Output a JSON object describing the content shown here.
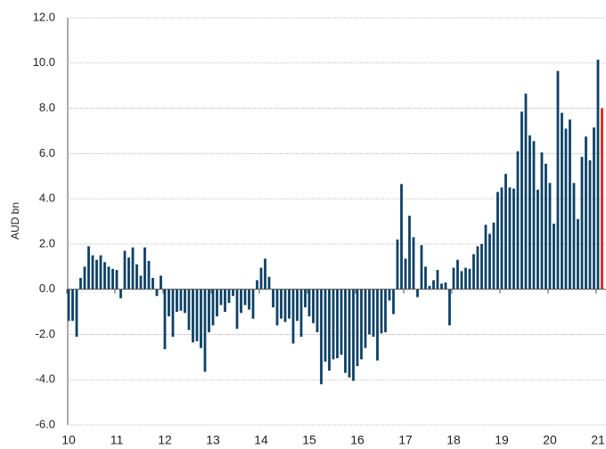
{
  "chart_data": {
    "type": "bar",
    "y_label": "AUD bn",
    "categories": [
      "10",
      null,
      null,
      null,
      null,
      null,
      null,
      null,
      null,
      null,
      null,
      null,
      "11",
      null,
      null,
      null,
      null,
      null,
      null,
      null,
      null,
      null,
      null,
      null,
      "12",
      null,
      null,
      null,
      null,
      null,
      null,
      null,
      null,
      null,
      null,
      null,
      "13",
      null,
      null,
      null,
      null,
      null,
      null,
      null,
      null,
      null,
      null,
      null,
      "14",
      null,
      null,
      null,
      null,
      null,
      null,
      null,
      null,
      null,
      null,
      null,
      "15",
      null,
      null,
      null,
      null,
      null,
      null,
      null,
      null,
      null,
      null,
      null,
      "16",
      null,
      null,
      null,
      null,
      null,
      null,
      null,
      null,
      null,
      null,
      null,
      "17",
      null,
      null,
      null,
      null,
      null,
      null,
      null,
      null,
      null,
      null,
      null,
      "18",
      null,
      null,
      null,
      null,
      null,
      null,
      null,
      null,
      null,
      null,
      null,
      "19",
      null,
      null,
      null,
      null,
      null,
      null,
      null,
      null,
      null,
      null,
      null,
      "20",
      null,
      null,
      null,
      null,
      null,
      null,
      null,
      null,
      null,
      null,
      null,
      "21",
      null
    ],
    "values": [
      -1.4,
      -1.4,
      -2.1,
      0.5,
      1.0,
      1.9,
      1.5,
      1.3,
      1.5,
      1.2,
      1.0,
      0.9,
      0.85,
      -0.4,
      1.7,
      1.4,
      1.85,
      1.1,
      0.6,
      1.85,
      1.25,
      0.5,
      -0.3,
      0.6,
      -2.65,
      -1.2,
      -2.1,
      -1.0,
      -0.95,
      -1.05,
      -1.8,
      -2.35,
      -2.3,
      -2.6,
      -3.65,
      -1.9,
      -1.6,
      -1.2,
      -0.7,
      -1.0,
      -0.6,
      -0.3,
      -1.75,
      -1.05,
      -0.7,
      -0.9,
      -1.3,
      0.4,
      0.95,
      1.35,
      0.55,
      -0.8,
      -1.6,
      -1.3,
      -1.45,
      -1.3,
      -2.4,
      -1.4,
      -2.1,
      -0.8,
      -1.2,
      -1.5,
      -1.9,
      -4.2,
      -3.2,
      -3.6,
      -3.1,
      -3.05,
      -2.9,
      -3.7,
      -3.9,
      -4.05,
      -3.4,
      -3.1,
      -2.6,
      -2.0,
      -2.1,
      -3.15,
      -1.95,
      -1.9,
      -0.5,
      -1.1,
      2.2,
      4.65,
      1.35,
      3.25,
      2.3,
      -0.35,
      1.95,
      1.0,
      0.15,
      0.4,
      0.85,
      0.25,
      0.3,
      -1.6,
      0.95,
      1.3,
      0.8,
      0.95,
      0.9,
      1.55,
      1.9,
      2.0,
      2.85,
      2.45,
      2.95,
      4.3,
      4.5,
      5.1,
      4.5,
      4.45,
      6.1,
      7.85,
      8.65,
      6.8,
      6.55,
      4.4,
      6.05,
      5.55,
      4.7,
      2.9,
      9.65,
      7.8,
      7.1,
      7.5,
      4.7,
      3.1,
      5.85,
      6.75,
      5.7,
      7.15,
      10.15,
      8.0
    ],
    "color": "#0d4266",
    "last_color": "#e8201c",
    "ylim": [
      -6,
      12
    ],
    "yticks": [
      {
        "value": -6,
        "label": "-6.0"
      },
      {
        "value": -4,
        "label": "-4.0"
      },
      {
        "value": -2,
        "label": "-2.0"
      },
      {
        "value": 0,
        "label": "0.0"
      },
      {
        "value": 2,
        "label": "2.0"
      },
      {
        "value": 4,
        "label": "4.0"
      },
      {
        "value": 6,
        "label": "6.0"
      },
      {
        "value": 8,
        "label": "8.0"
      },
      {
        "value": 10,
        "label": "10.0"
      },
      {
        "value": 12,
        "label": "12.0"
      }
    ],
    "grid": true
  }
}
